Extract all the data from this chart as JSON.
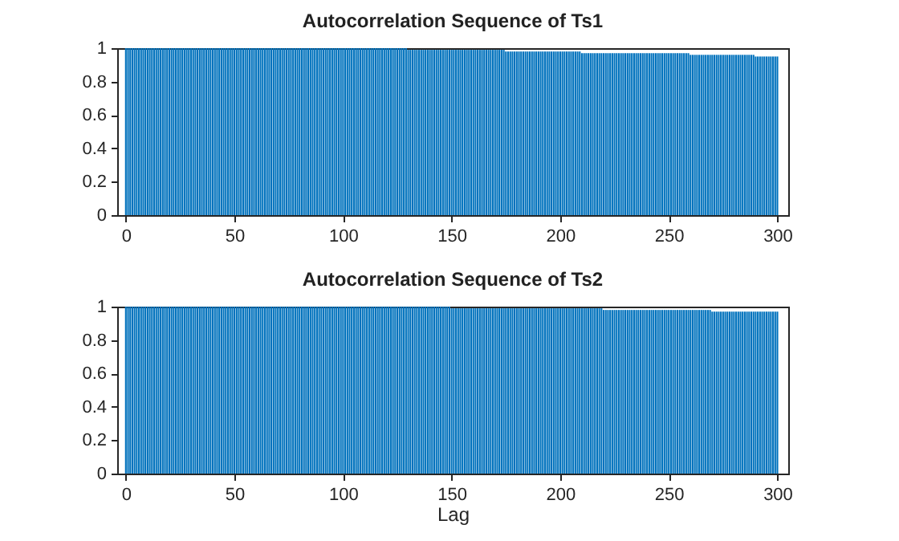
{
  "chart_data": [
    {
      "type": "bar",
      "title": "Autocorrelation Sequence of Ts1",
      "color": "#0072bd",
      "xlim": [
        -4,
        305
      ],
      "xticks": [
        0,
        50,
        100,
        150,
        200,
        250,
        300
      ],
      "ylim": [
        0,
        1
      ],
      "yticks": [
        0,
        0.2,
        0.4,
        0.6,
        0.8,
        1
      ],
      "grid": false,
      "x": [
        0,
        1,
        2,
        3,
        4,
        5,
        6,
        7,
        8,
        9,
        10,
        11,
        12,
        13,
        14,
        15,
        16,
        17,
        18,
        19,
        20,
        21,
        22,
        23,
        24,
        25,
        26,
        27,
        28,
        29,
        30,
        31,
        32,
        33,
        34,
        35,
        36,
        37,
        38,
        39,
        40,
        41,
        42,
        43,
        44,
        45,
        46,
        47,
        48,
        49,
        50,
        51,
        52,
        53,
        54,
        55,
        56,
        57,
        58,
        59,
        60,
        61,
        62,
        63,
        64,
        65,
        66,
        67,
        68,
        69,
        70,
        71,
        72,
        73,
        74,
        75,
        76,
        77,
        78,
        79,
        80,
        81,
        82,
        83,
        84,
        85,
        86,
        87,
        88,
        89,
        90,
        91,
        92,
        93,
        94,
        95,
        96,
        97,
        98,
        99,
        100,
        101,
        102,
        103,
        104,
        105,
        106,
        107,
        108,
        109,
        110,
        111,
        112,
        113,
        114,
        115,
        116,
        117,
        118,
        119,
        120,
        121,
        122,
        123,
        124,
        125,
        126,
        127,
        128,
        129,
        130,
        131,
        132,
        133,
        134,
        135,
        136,
        137,
        138,
        139,
        140,
        141,
        142,
        143,
        144,
        145,
        146,
        147,
        148,
        149,
        150,
        151,
        152,
        153,
        154,
        155,
        156,
        157,
        158,
        159,
        160,
        161,
        162,
        163,
        164,
        165,
        166,
        167,
        168,
        169,
        170,
        171,
        172,
        173,
        174,
        175,
        176,
        177,
        178,
        179,
        180,
        181,
        182,
        183,
        184,
        185,
        186,
        187,
        188,
        189,
        190,
        191,
        192,
        193,
        194,
        195,
        196,
        197,
        198,
        199,
        200,
        201,
        202,
        203,
        204,
        205,
        206,
        207,
        208,
        209,
        210,
        211,
        212,
        213,
        214,
        215,
        216,
        217,
        218,
        219,
        220,
        221,
        222,
        223,
        224,
        225,
        226,
        227,
        228,
        229,
        230,
        231,
        232,
        233,
        234,
        235,
        236,
        237,
        238,
        239,
        240,
        241,
        242,
        243,
        244,
        245,
        246,
        247,
        248,
        249,
        250,
        251,
        252,
        253,
        254,
        255,
        256,
        257,
        258,
        259,
        260,
        261,
        262,
        263,
        264,
        265,
        266,
        267,
        268,
        269,
        270,
        271,
        272,
        273,
        274,
        275,
        276,
        277,
        278,
        279,
        280,
        281,
        282,
        283,
        284,
        285,
        286,
        287,
        288,
        289,
        290,
        291,
        292,
        293,
        294,
        295,
        296,
        297,
        298,
        299,
        300
      ],
      "values": [
        1,
        1,
        1,
        1,
        1,
        1,
        1,
        1,
        1,
        1,
        1,
        1,
        1,
        1,
        1,
        1,
        1,
        1,
        1,
        1,
        1,
        1,
        1,
        1,
        1,
        1,
        1,
        1,
        1,
        1,
        1,
        1,
        1,
        1,
        1,
        1,
        1,
        1,
        1,
        1,
        1,
        1,
        1,
        1,
        1,
        1,
        1,
        1,
        1,
        1,
        1,
        1,
        1,
        1,
        1,
        1,
        1,
        1,
        1,
        1,
        1,
        1,
        1,
        1,
        1,
        1,
        1,
        1,
        1,
        1,
        1,
        1,
        1,
        1,
        1,
        1,
        1,
        1,
        1,
        1,
        1,
        1,
        1,
        1,
        1,
        1,
        1,
        1,
        1,
        1,
        1,
        1,
        1,
        1,
        1,
        1,
        1,
        1,
        1,
        1,
        1,
        1,
        1,
        1,
        1,
        1,
        1,
        1,
        1,
        1,
        1,
        1,
        1,
        1,
        1,
        1,
        1,
        1,
        1,
        1,
        1,
        1,
        1,
        1,
        1,
        1,
        1,
        1,
        1,
        1,
        0.99,
        0.99,
        0.99,
        0.99,
        0.99,
        0.99,
        0.99,
        0.99,
        0.99,
        0.99,
        0.99,
        0.99,
        0.99,
        0.99,
        0.99,
        0.99,
        0.99,
        0.99,
        0.99,
        0.99,
        0.99,
        0.99,
        0.99,
        0.99,
        0.99,
        0.99,
        0.99,
        0.99,
        0.99,
        0.99,
        0.99,
        0.99,
        0.99,
        0.99,
        0.99,
        0.99,
        0.99,
        0.99,
        0.99,
        0.99,
        0.99,
        0.99,
        0.99,
        0.99,
        0.99,
        0.98,
        0.98,
        0.98,
        0.98,
        0.98,
        0.98,
        0.98,
        0.98,
        0.98,
        0.98,
        0.98,
        0.98,
        0.98,
        0.98,
        0.98,
        0.98,
        0.98,
        0.98,
        0.98,
        0.98,
        0.98,
        0.98,
        0.98,
        0.98,
        0.98,
        0.98,
        0.98,
        0.98,
        0.98,
        0.98,
        0.98,
        0.98,
        0.98,
        0.98,
        0.98,
        0.97,
        0.97,
        0.97,
        0.97,
        0.97,
        0.97,
        0.97,
        0.97,
        0.97,
        0.97,
        0.97,
        0.97,
        0.97,
        0.97,
        0.97,
        0.97,
        0.97,
        0.97,
        0.97,
        0.97,
        0.97,
        0.97,
        0.97,
        0.97,
        0.97,
        0.97,
        0.97,
        0.97,
        0.97,
        0.97,
        0.97,
        0.97,
        0.97,
        0.97,
        0.97,
        0.97,
        0.97,
        0.97,
        0.97,
        0.97,
        0.97,
        0.97,
        0.97,
        0.97,
        0.97,
        0.97,
        0.97,
        0.97,
        0.97,
        0.97,
        0.96,
        0.96,
        0.96,
        0.96,
        0.96,
        0.96,
        0.96,
        0.96,
        0.96,
        0.96,
        0.96,
        0.96,
        0.96,
        0.96,
        0.96,
        0.96,
        0.96,
        0.96,
        0.96,
        0.96,
        0.96,
        0.96,
        0.96,
        0.96,
        0.96,
        0.96,
        0.96,
        0.96,
        0.96,
        0.96,
        0.95,
        0.95,
        0.95,
        0.95,
        0.95,
        0.95,
        0.95,
        0.95,
        0.95,
        0.95,
        0.95
      ]
    },
    {
      "type": "bar",
      "title": "Autocorrelation Sequence of Ts2",
      "xlabel": "Lag",
      "color": "#0072bd",
      "xlim": [
        -4,
        305
      ],
      "xticks": [
        0,
        50,
        100,
        150,
        200,
        250,
        300
      ],
      "ylim": [
        0,
        1
      ],
      "yticks": [
        0,
        0.2,
        0.4,
        0.6,
        0.8,
        1
      ],
      "grid": false,
      "x": [
        0,
        1,
        2,
        3,
        4,
        5,
        6,
        7,
        8,
        9,
        10,
        11,
        12,
        13,
        14,
        15,
        16,
        17,
        18,
        19,
        20,
        21,
        22,
        23,
        24,
        25,
        26,
        27,
        28,
        29,
        30,
        31,
        32,
        33,
        34,
        35,
        36,
        37,
        38,
        39,
        40,
        41,
        42,
        43,
        44,
        45,
        46,
        47,
        48,
        49,
        50,
        51,
        52,
        53,
        54,
        55,
        56,
        57,
        58,
        59,
        60,
        61,
        62,
        63,
        64,
        65,
        66,
        67,
        68,
        69,
        70,
        71,
        72,
        73,
        74,
        75,
        76,
        77,
        78,
        79,
        80,
        81,
        82,
        83,
        84,
        85,
        86,
        87,
        88,
        89,
        90,
        91,
        92,
        93,
        94,
        95,
        96,
        97,
        98,
        99,
        100,
        101,
        102,
        103,
        104,
        105,
        106,
        107,
        108,
        109,
        110,
        111,
        112,
        113,
        114,
        115,
        116,
        117,
        118,
        119,
        120,
        121,
        122,
        123,
        124,
        125,
        126,
        127,
        128,
        129,
        130,
        131,
        132,
        133,
        134,
        135,
        136,
        137,
        138,
        139,
        140,
        141,
        142,
        143,
        144,
        145,
        146,
        147,
        148,
        149,
        150,
        151,
        152,
        153,
        154,
        155,
        156,
        157,
        158,
        159,
        160,
        161,
        162,
        163,
        164,
        165,
        166,
        167,
        168,
        169,
        170,
        171,
        172,
        173,
        174,
        175,
        176,
        177,
        178,
        179,
        180,
        181,
        182,
        183,
        184,
        185,
        186,
        187,
        188,
        189,
        190,
        191,
        192,
        193,
        194,
        195,
        196,
        197,
        198,
        199,
        200,
        201,
        202,
        203,
        204,
        205,
        206,
        207,
        208,
        209,
        210,
        211,
        212,
        213,
        214,
        215,
        216,
        217,
        218,
        219,
        220,
        221,
        222,
        223,
        224,
        225,
        226,
        227,
        228,
        229,
        230,
        231,
        232,
        233,
        234,
        235,
        236,
        237,
        238,
        239,
        240,
        241,
        242,
        243,
        244,
        245,
        246,
        247,
        248,
        249,
        250,
        251,
        252,
        253,
        254,
        255,
        256,
        257,
        258,
        259,
        260,
        261,
        262,
        263,
        264,
        265,
        266,
        267,
        268,
        269,
        270,
        271,
        272,
        273,
        274,
        275,
        276,
        277,
        278,
        279,
        280,
        281,
        282,
        283,
        284,
        285,
        286,
        287,
        288,
        289,
        290,
        291,
        292,
        293,
        294,
        295,
        296,
        297,
        298,
        299,
        300
      ],
      "values": [
        1,
        1,
        1,
        1,
        1,
        1,
        1,
        1,
        1,
        1,
        1,
        1,
        1,
        1,
        1,
        1,
        1,
        1,
        1,
        1,
        1,
        1,
        1,
        1,
        1,
        1,
        1,
        1,
        1,
        1,
        1,
        1,
        1,
        1,
        1,
        1,
        1,
        1,
        1,
        1,
        1,
        1,
        1,
        1,
        1,
        1,
        1,
        1,
        1,
        1,
        1,
        1,
        1,
        1,
        1,
        1,
        1,
        1,
        1,
        1,
        1,
        1,
        1,
        1,
        1,
        1,
        1,
        1,
        1,
        1,
        1,
        1,
        1,
        1,
        1,
        1,
        1,
        1,
        1,
        1,
        1,
        1,
        1,
        1,
        1,
        1,
        1,
        1,
        1,
        1,
        1,
        1,
        1,
        1,
        1,
        1,
        1,
        1,
        1,
        1,
        1,
        1,
        1,
        1,
        1,
        1,
        1,
        1,
        1,
        1,
        1,
        1,
        1,
        1,
        1,
        1,
        1,
        1,
        1,
        1,
        1,
        1,
        1,
        1,
        1,
        1,
        1,
        1,
        1,
        1,
        1,
        1,
        1,
        1,
        1,
        1,
        1,
        1,
        1,
        1,
        1,
        1,
        1,
        1,
        1,
        1,
        1,
        1,
        1,
        1,
        0.99,
        0.99,
        0.99,
        0.99,
        0.99,
        0.99,
        0.99,
        0.99,
        0.99,
        0.99,
        0.99,
        0.99,
        0.99,
        0.99,
        0.99,
        0.99,
        0.99,
        0.99,
        0.99,
        0.99,
        0.99,
        0.99,
        0.99,
        0.99,
        0.99,
        0.99,
        0.99,
        0.99,
        0.99,
        0.99,
        0.99,
        0.99,
        0.99,
        0.99,
        0.99,
        0.99,
        0.99,
        0.99,
        0.99,
        0.99,
        0.99,
        0.99,
        0.99,
        0.99,
        0.99,
        0.99,
        0.99,
        0.99,
        0.99,
        0.99,
        0.99,
        0.99,
        0.99,
        0.99,
        0.99,
        0.99,
        0.99,
        0.99,
        0.99,
        0.99,
        0.99,
        0.99,
        0.99,
        0.99,
        0.99,
        0.99,
        0.99,
        0.99,
        0.99,
        0.99,
        0.98,
        0.98,
        0.98,
        0.98,
        0.98,
        0.98,
        0.98,
        0.98,
        0.98,
        0.98,
        0.98,
        0.98,
        0.98,
        0.98,
        0.98,
        0.98,
        0.98,
        0.98,
        0.98,
        0.98,
        0.98,
        0.98,
        0.98,
        0.98,
        0.98,
        0.98,
        0.98,
        0.98,
        0.98,
        0.98,
        0.98,
        0.98,
        0.98,
        0.98,
        0.98,
        0.98,
        0.98,
        0.98,
        0.98,
        0.98,
        0.98,
        0.98,
        0.98,
        0.98,
        0.98,
        0.98,
        0.98,
        0.98,
        0.98,
        0.98,
        0.97,
        0.97,
        0.97,
        0.97,
        0.97,
        0.97,
        0.97,
        0.97,
        0.97,
        0.97,
        0.97,
        0.97,
        0.97,
        0.97,
        0.97,
        0.97,
        0.97,
        0.97,
        0.97,
        0.97,
        0.97,
        0.97,
        0.97,
        0.97,
        0.97,
        0.97,
        0.97,
        0.97,
        0.97,
        0.97,
        0.97
      ]
    }
  ]
}
